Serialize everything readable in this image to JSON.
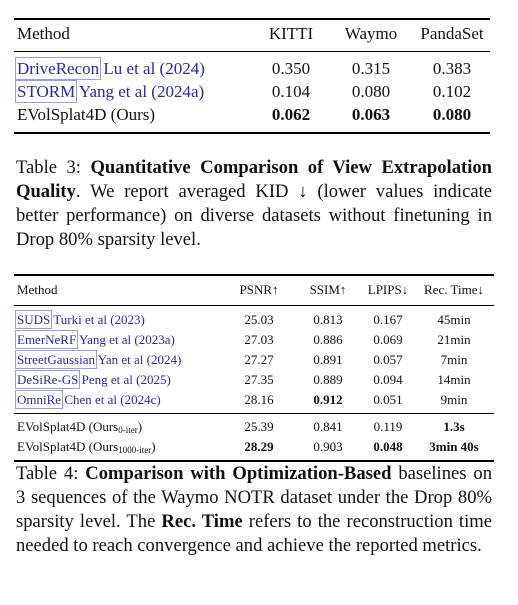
{
  "table3": {
    "header": [
      "Method",
      "KITTI",
      "Waymo",
      "PandaSet"
    ],
    "rows": [
      {
        "method": "DriveRecon",
        "cite": "Lu et al (2024)",
        "v": [
          "0.350",
          "0.315",
          "0.383"
        ]
      },
      {
        "method": "STORM",
        "cite": "Yang et al (2024a)",
        "v": [
          "0.104",
          "0.080",
          "0.102"
        ]
      },
      {
        "method": "EVolSplat4D (Ours)",
        "cite": "",
        "v": [
          "0.062",
          "0.063",
          "0.080"
        ]
      }
    ],
    "caption": {
      "label": "Table 3:",
      "title": "Quantitative Comparison of View Extrapolation Quality",
      "body": ". We report averaged KID ↓ (lower values indicate better performance) on diverse datasets without finetuning in Drop 80% sparsity level."
    }
  },
  "table4": {
    "header": [
      "Method",
      "PSNR↑",
      "SSIM↑",
      "LPIPS↓",
      "Rec. Time↓"
    ],
    "rows": [
      {
        "method": "SUDS",
        "cite": "Turki et al (2023)",
        "v": [
          "25.03",
          "0.813",
          "0.167",
          "45min"
        ]
      },
      {
        "method": "EmerNeRF",
        "cite": "Yang et al (2023a)",
        "v": [
          "27.03",
          "0.886",
          "0.069",
          "21min"
        ]
      },
      {
        "method": "StreetGaussian",
        "cite": "Yan et al (2024)",
        "v": [
          "27.27",
          "0.891",
          "0.057",
          "7min"
        ]
      },
      {
        "method": "DeSiRe-GS",
        "cite": "Peng et al (2025)",
        "v": [
          "27.35",
          "0.889",
          "0.094",
          "14min"
        ]
      },
      {
        "method": "OmniRe",
        "cite": "Chen et al (2024c)",
        "v": [
          "28.16",
          "0.912",
          "0.051",
          "9min"
        ]
      }
    ],
    "ours": [
      {
        "method": "EVolSplat4D (Ours",
        "sub": "0-iter",
        "v": [
          "25.39",
          "0.841",
          "0.119",
          "1.3s"
        ]
      },
      {
        "method": "EVolSplat4D (Ours",
        "sub": "1000-iter",
        "v": [
          "28.29",
          "0.903",
          "0.048",
          "3min 40s"
        ]
      }
    ],
    "caption": {
      "label": "Table 4:",
      "title": "Comparison with Optimization-Based",
      "body1": " baselines on 3 sequences of the Waymo NOTR dataset under the Drop 80% sparsity level. The ",
      "term": "Rec. Time",
      "body2": " refers to the reconstruction time needed to reach convergence and achieve the reported metrics."
    }
  }
}
